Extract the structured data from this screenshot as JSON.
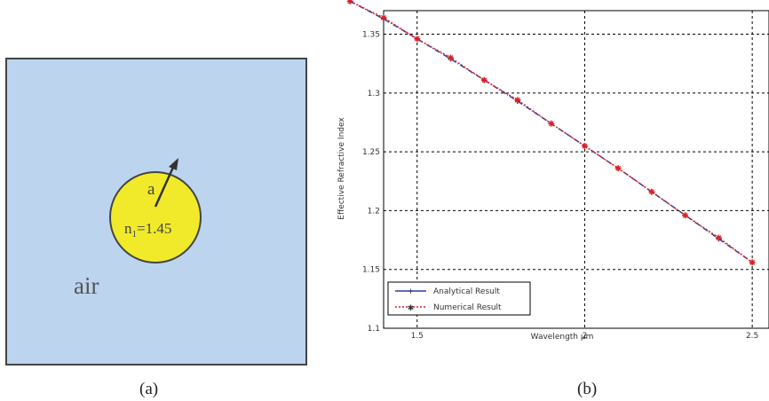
{
  "figure_a": {
    "caption": "(a)",
    "radius_label": "a",
    "index_label_prefix": "n",
    "index_label_sub": "1",
    "index_label_value": "=1.45",
    "medium_label": "air",
    "colors": {
      "background_box": "#bcd4ee",
      "core": "#f0ea2a",
      "outline": "#444444"
    }
  },
  "figure_b": {
    "caption": "(b)"
  },
  "chart_data": {
    "type": "line",
    "title": "",
    "xlabel": "Wavelength μm",
    "ylabel": "Effective Refractive Index",
    "xlim": [
      1.4,
      2.55
    ],
    "ylim": [
      1.1,
      1.37
    ],
    "x_ticks": [
      1.5,
      2,
      2.5
    ],
    "x_tick_labels": [
      "1.5",
      "2",
      "2.5"
    ],
    "y_ticks": [
      1.1,
      1.15,
      1.2,
      1.25,
      1.3,
      1.35
    ],
    "y_tick_labels": [
      "1.1",
      "1.15",
      "1.2",
      "1.25",
      "1.3",
      "1.35"
    ],
    "grid": true,
    "legend_position": "bottom-left",
    "series": [
      {
        "name": "Analytical Result",
        "color": "#2b3f9e",
        "style": "solid-plus-markers",
        "x": [
          1.3,
          1.4,
          1.5,
          1.6,
          1.7,
          1.8,
          1.9,
          2.0,
          2.1,
          2.2,
          2.3,
          2.4,
          2.5
        ],
        "y": [
          1.378,
          1.363,
          1.346,
          1.329,
          1.311,
          1.293,
          1.274,
          1.255,
          1.236,
          1.216,
          1.196,
          1.176,
          1.156
        ]
      },
      {
        "name": "Numerical Result",
        "color": "#e02020",
        "style": "dotted-star-markers",
        "x": [
          1.3,
          1.4,
          1.5,
          1.6,
          1.7,
          1.8,
          1.9,
          2.0,
          2.1,
          2.2,
          2.3,
          2.4,
          2.5
        ],
        "y": [
          1.378,
          1.364,
          1.346,
          1.33,
          1.311,
          1.294,
          1.274,
          1.255,
          1.236,
          1.216,
          1.196,
          1.177,
          1.156
        ]
      }
    ]
  }
}
